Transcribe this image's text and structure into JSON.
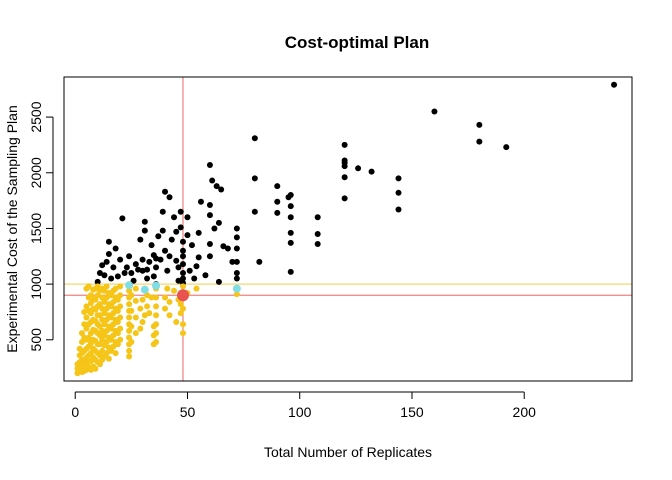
{
  "chart_data": {
    "type": "scatter",
    "title": "Cost-optimal Plan",
    "xlabel": "Total Number of Replicates",
    "ylabel": "Experimental Cost of the Sampling Plan",
    "xlim": [
      -5,
      248
    ],
    "ylim": [
      130,
      2860
    ],
    "x_ticks": [
      0,
      50,
      100,
      150,
      200
    ],
    "y_ticks": [
      500,
      1000,
      1500,
      2000,
      2500
    ],
    "grid": false,
    "legend": "none",
    "reference_lines": [
      {
        "orientation": "horizontal",
        "value": 1000,
        "color": "#f5d76e"
      },
      {
        "orientation": "horizontal",
        "value": 900,
        "color": "#f08080"
      },
      {
        "orientation": "vertical",
        "value": 48,
        "color": "#f08080"
      }
    ],
    "series": [
      {
        "color": "#000000",
        "points": [
          [
            10,
            1020
          ],
          [
            11,
            1100
          ],
          [
            12,
            1170
          ],
          [
            13,
            1080
          ],
          [
            14,
            1200
          ],
          [
            15,
            1380
          ],
          [
            15,
            1270
          ],
          [
            16,
            1050
          ],
          [
            17,
            1150
          ],
          [
            18,
            1320
          ],
          [
            19,
            1070
          ],
          [
            20,
            1220
          ],
          [
            21,
            1590
          ],
          [
            22,
            1100
          ],
          [
            23,
            1150
          ],
          [
            24,
            1250
          ],
          [
            25,
            1100
          ],
          [
            26,
            1030
          ],
          [
            27,
            1180
          ],
          [
            28,
            1130
          ],
          [
            29,
            1400
          ],
          [
            30,
            1220
          ],
          [
            30,
            1120
          ],
          [
            31,
            1480
          ],
          [
            31,
            1560
          ],
          [
            32,
            1050
          ],
          [
            32,
            1130
          ],
          [
            33,
            1200
          ],
          [
            34,
            1350
          ],
          [
            35,
            1070
          ],
          [
            35,
            1260
          ],
          [
            36,
            1000
          ],
          [
            36,
            1150
          ],
          [
            36,
            1230
          ],
          [
            37,
            1430
          ],
          [
            38,
            1220
          ],
          [
            39,
            1650
          ],
          [
            39,
            1480
          ],
          [
            40,
            1830
          ],
          [
            40,
            1300
          ],
          [
            41,
            1120
          ],
          [
            42,
            1780
          ],
          [
            42,
            1250
          ],
          [
            43,
            1400
          ],
          [
            44,
            1600
          ],
          [
            45,
            1470
          ],
          [
            45,
            1210
          ],
          [
            46,
            1150
          ],
          [
            46,
            1030
          ],
          [
            47,
            1510
          ],
          [
            47,
            1650
          ],
          [
            48,
            1380
          ],
          [
            48,
            1300
          ],
          [
            48,
            1250
          ],
          [
            48,
            1180
          ],
          [
            48,
            1100
          ],
          [
            48,
            1050
          ],
          [
            48,
            1010
          ],
          [
            50,
            1600
          ],
          [
            50,
            1440
          ],
          [
            51,
            1120
          ],
          [
            52,
            1350
          ],
          [
            53,
            1050
          ],
          [
            54,
            1160
          ],
          [
            55,
            1460
          ],
          [
            55,
            1240
          ],
          [
            56,
            1740
          ],
          [
            58,
            1080
          ],
          [
            60,
            2070
          ],
          [
            60,
            1710
          ],
          [
            60,
            1620
          ],
          [
            60,
            1360
          ],
          [
            60,
            1250
          ],
          [
            61,
            1930
          ],
          [
            62,
            1500
          ],
          [
            63,
            1880
          ],
          [
            64,
            1020
          ],
          [
            64,
            1550
          ],
          [
            65,
            1850
          ],
          [
            66,
            1340
          ],
          [
            68,
            1320
          ],
          [
            70,
            1200
          ],
          [
            72,
            1500
          ],
          [
            72,
            1420
          ],
          [
            72,
            1320
          ],
          [
            72,
            1200
          ],
          [
            72,
            1100
          ],
          [
            72,
            1050
          ],
          [
            80,
            2310
          ],
          [
            80,
            1950
          ],
          [
            80,
            1650
          ],
          [
            82,
            1200
          ],
          [
            90,
            1880
          ],
          [
            90,
            1740
          ],
          [
            90,
            1640
          ],
          [
            95,
            1780
          ],
          [
            96,
            1800
          ],
          [
            96,
            1700
          ],
          [
            96,
            1600
          ],
          [
            96,
            1460
          ],
          [
            96,
            1370
          ],
          [
            96,
            1110
          ],
          [
            108,
            1600
          ],
          [
            108,
            1450
          ],
          [
            108,
            1360
          ],
          [
            120,
            2250
          ],
          [
            120,
            2110
          ],
          [
            120,
            2090
          ],
          [
            120,
            2060
          ],
          [
            120,
            1960
          ],
          [
            120,
            1770
          ],
          [
            126,
            2040
          ],
          [
            132,
            2010
          ],
          [
            144,
            1950
          ],
          [
            144,
            1820
          ],
          [
            144,
            1670
          ],
          [
            160,
            2550
          ],
          [
            180,
            2430
          ],
          [
            180,
            2280
          ],
          [
            192,
            2230
          ],
          [
            240,
            2790
          ]
        ]
      },
      {
        "color": "#f5c518",
        "points": [
          [
            1,
            200
          ],
          [
            1,
            240
          ],
          [
            1,
            280
          ],
          [
            2,
            220
          ],
          [
            2,
            300
          ],
          [
            2,
            360
          ],
          [
            2,
            420
          ],
          [
            3,
            210
          ],
          [
            3,
            260
          ],
          [
            3,
            320
          ],
          [
            3,
            380
          ],
          [
            3,
            480
          ],
          [
            3,
            560
          ],
          [
            4,
            220
          ],
          [
            4,
            300
          ],
          [
            4,
            400
          ],
          [
            4,
            520
          ],
          [
            4,
            640
          ],
          [
            4,
            750
          ],
          [
            5,
            230
          ],
          [
            5,
            280
          ],
          [
            5,
            340
          ],
          [
            5,
            420
          ],
          [
            5,
            500
          ],
          [
            5,
            600
          ],
          [
            5,
            700
          ],
          [
            5,
            800
          ],
          [
            5,
            960
          ],
          [
            6,
            250
          ],
          [
            6,
            300
          ],
          [
            6,
            360
          ],
          [
            6,
            440
          ],
          [
            6,
            520
          ],
          [
            6,
            640
          ],
          [
            6,
            760
          ],
          [
            6,
            880
          ],
          [
            6,
            980
          ],
          [
            7,
            230
          ],
          [
            7,
            310
          ],
          [
            7,
            380
          ],
          [
            7,
            470
          ],
          [
            7,
            560
          ],
          [
            7,
            660
          ],
          [
            7,
            740
          ],
          [
            7,
            830
          ],
          [
            7,
            900
          ],
          [
            8,
            260
          ],
          [
            8,
            340
          ],
          [
            8,
            420
          ],
          [
            8,
            500
          ],
          [
            8,
            590
          ],
          [
            8,
            680
          ],
          [
            8,
            780
          ],
          [
            8,
            870
          ],
          [
            8,
            950
          ],
          [
            9,
            240
          ],
          [
            9,
            320
          ],
          [
            9,
            400
          ],
          [
            9,
            490
          ],
          [
            9,
            580
          ],
          [
            9,
            670
          ],
          [
            9,
            770
          ],
          [
            9,
            860
          ],
          [
            9,
            960
          ],
          [
            10,
            300
          ],
          [
            10,
            380
          ],
          [
            10,
            460
          ],
          [
            10,
            560
          ],
          [
            10,
            640
          ],
          [
            10,
            720
          ],
          [
            10,
            800
          ],
          [
            10,
            900
          ],
          [
            10,
            980
          ],
          [
            11,
            280
          ],
          [
            11,
            360
          ],
          [
            11,
            460
          ],
          [
            11,
            540
          ],
          [
            11,
            620
          ],
          [
            11,
            720
          ],
          [
            11,
            820
          ],
          [
            11,
            940
          ],
          [
            12,
            320
          ],
          [
            12,
            400
          ],
          [
            12,
            500
          ],
          [
            12,
            580
          ],
          [
            12,
            680
          ],
          [
            12,
            780
          ],
          [
            12,
            880
          ],
          [
            12,
            960
          ],
          [
            13,
            350
          ],
          [
            13,
            450
          ],
          [
            13,
            540
          ],
          [
            13,
            640
          ],
          [
            13,
            740
          ],
          [
            13,
            840
          ],
          [
            13,
            940
          ],
          [
            14,
            380
          ],
          [
            14,
            480
          ],
          [
            14,
            580
          ],
          [
            14,
            680
          ],
          [
            14,
            780
          ],
          [
            14,
            880
          ],
          [
            14,
            980
          ],
          [
            15,
            330
          ],
          [
            15,
            430
          ],
          [
            15,
            520
          ],
          [
            15,
            620
          ],
          [
            15,
            720
          ],
          [
            15,
            820
          ],
          [
            15,
            920
          ],
          [
            16,
            400
          ],
          [
            16,
            500
          ],
          [
            16,
            600
          ],
          [
            16,
            700
          ],
          [
            16,
            800
          ],
          [
            16,
            900
          ],
          [
            17,
            440
          ],
          [
            17,
            540
          ],
          [
            17,
            640
          ],
          [
            17,
            740
          ],
          [
            17,
            840
          ],
          [
            17,
            940
          ],
          [
            18,
            380
          ],
          [
            18,
            480
          ],
          [
            18,
            580
          ],
          [
            18,
            680
          ],
          [
            18,
            780
          ],
          [
            18,
            880
          ],
          [
            18,
            960
          ],
          [
            19,
            460
          ],
          [
            19,
            560
          ],
          [
            19,
            660
          ],
          [
            19,
            760
          ],
          [
            19,
            860
          ],
          [
            20,
            500
          ],
          [
            20,
            600
          ],
          [
            20,
            700
          ],
          [
            20,
            800
          ],
          [
            20,
            900
          ],
          [
            20,
            980
          ],
          [
            24,
            350
          ],
          [
            24,
            400
          ],
          [
            24,
            460
          ],
          [
            24,
            520
          ],
          [
            24,
            580
          ],
          [
            24,
            640
          ],
          [
            24,
            700
          ],
          [
            24,
            760
          ],
          [
            24,
            820
          ],
          [
            24,
            880
          ],
          [
            24,
            940
          ],
          [
            25,
            480
          ],
          [
            25,
            620
          ],
          [
            25,
            760
          ],
          [
            25,
            900
          ],
          [
            27,
            560
          ],
          [
            27,
            700
          ],
          [
            27,
            850
          ],
          [
            27,
            960
          ],
          [
            29,
            600
          ],
          [
            29,
            780
          ],
          [
            30,
            660
          ],
          [
            30,
            860
          ],
          [
            31,
            720
          ],
          [
            31,
            960
          ],
          [
            32,
            800
          ],
          [
            32,
            900
          ],
          [
            33,
            740
          ],
          [
            34,
            880
          ],
          [
            35,
            460
          ],
          [
            35,
            540
          ],
          [
            35,
            620
          ],
          [
            36,
            480
          ],
          [
            36,
            560
          ],
          [
            36,
            640
          ],
          [
            36,
            720
          ],
          [
            36,
            800
          ],
          [
            36,
            880
          ],
          [
            36,
            960
          ],
          [
            40,
            780
          ],
          [
            40,
            880
          ],
          [
            41,
            960
          ],
          [
            42,
            720
          ],
          [
            42,
            840
          ],
          [
            44,
            940
          ],
          [
            45,
            660
          ],
          [
            46,
            860
          ],
          [
            47,
            740
          ],
          [
            47,
            820
          ],
          [
            48,
            560
          ],
          [
            48,
            640
          ],
          [
            48,
            780
          ],
          [
            48,
            880
          ],
          [
            48,
            980
          ],
          [
            50,
            920
          ],
          [
            54,
            960
          ],
          [
            72,
            910
          ]
        ]
      },
      {
        "color": "#7fdde5",
        "points": [
          [
            24,
            990
          ],
          [
            31,
            950
          ],
          [
            36,
            985
          ],
          [
            72,
            960
          ]
        ]
      },
      {
        "color": "#e8524f",
        "points": [
          [
            48,
            900
          ]
        ]
      }
    ]
  }
}
